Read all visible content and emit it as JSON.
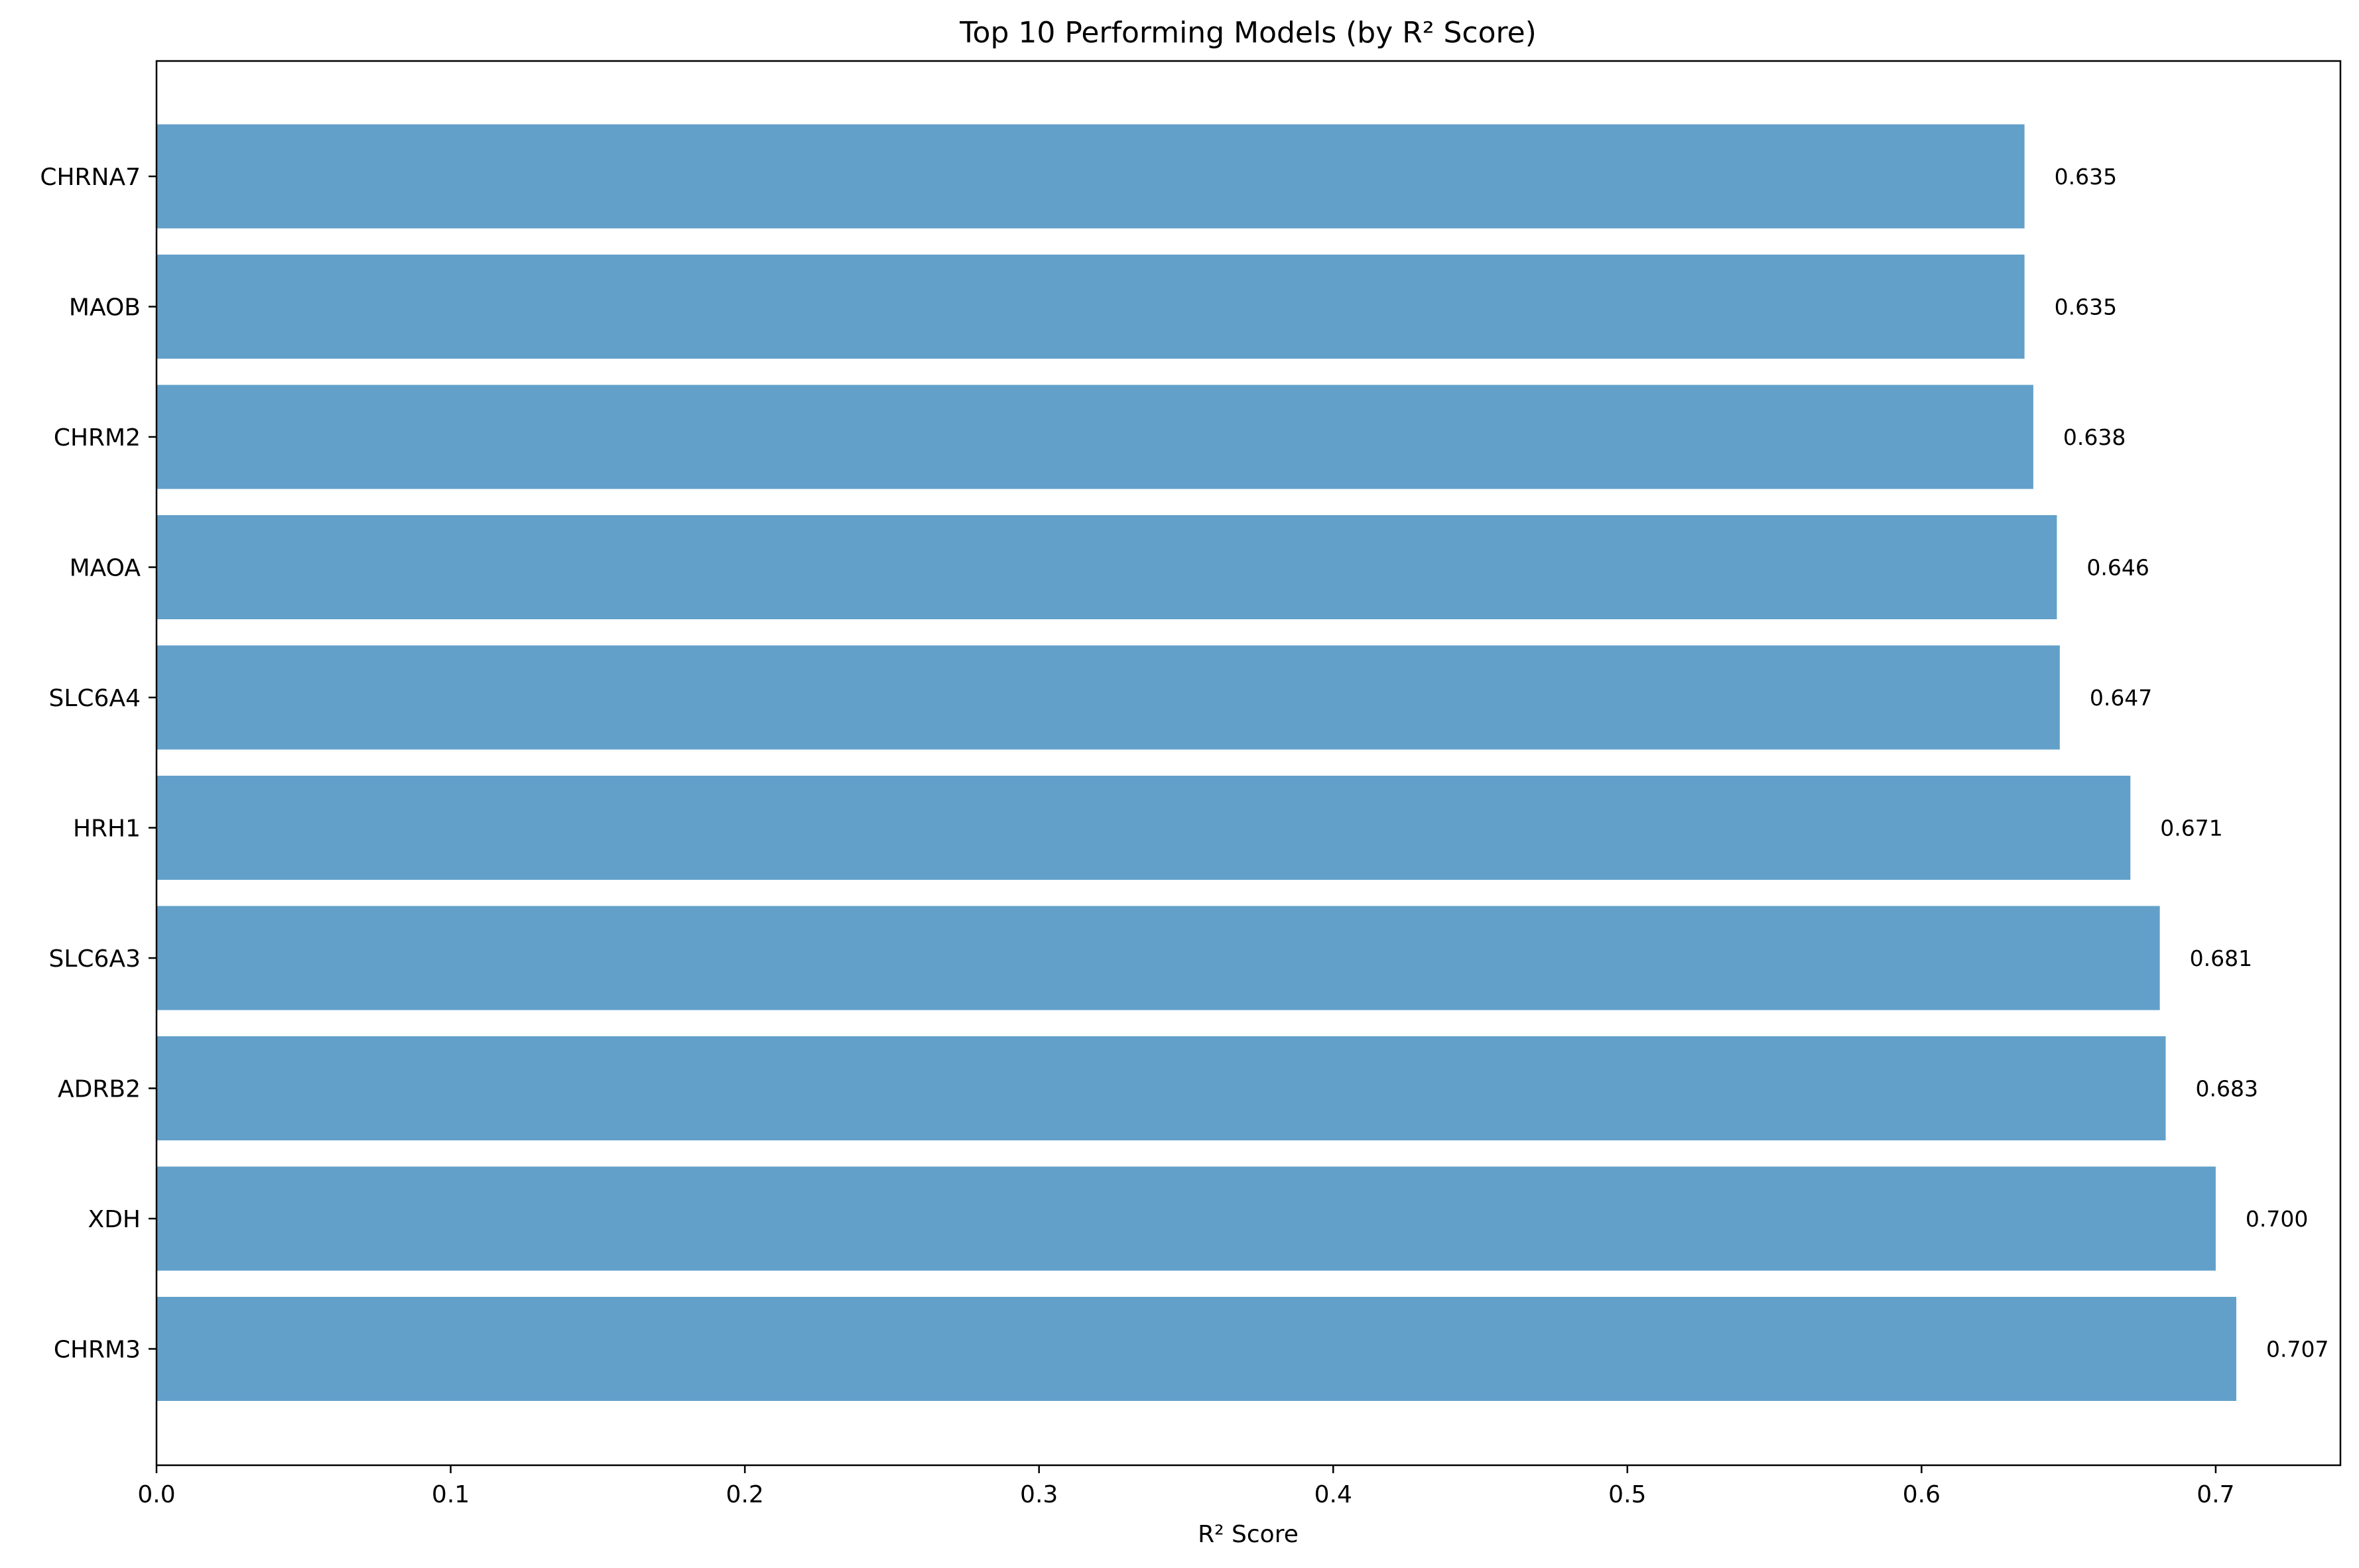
{
  "chart_data": {
    "type": "bar",
    "orientation": "horizontal",
    "title": "Top 10 Performing Models (by R² Score)",
    "xlabel": "R² Score",
    "ylabel": "",
    "categories": [
      "CHRNA7",
      "MAOB",
      "CHRM2",
      "MAOA",
      "SLC6A4",
      "HRH1",
      "SLC6A3",
      "ADRB2",
      "XDH",
      "CHRM3"
    ],
    "values": [
      0.635,
      0.635,
      0.638,
      0.646,
      0.647,
      0.671,
      0.681,
      0.683,
      0.7,
      0.707
    ],
    "value_labels": [
      "0.635",
      "0.635",
      "0.638",
      "0.646",
      "0.647",
      "0.671",
      "0.681",
      "0.683",
      "0.700",
      "0.707"
    ],
    "xlim": [
      0.0,
      0.7424
    ],
    "xticks": [
      0.0,
      0.1,
      0.2,
      0.3,
      0.4,
      0.5,
      0.6,
      0.7
    ],
    "xtick_labels": [
      "0.0",
      "0.1",
      "0.2",
      "0.3",
      "0.4",
      "0.5",
      "0.6",
      "0.7"
    ],
    "grid": false,
    "bar_color": "#62a0ca"
  }
}
